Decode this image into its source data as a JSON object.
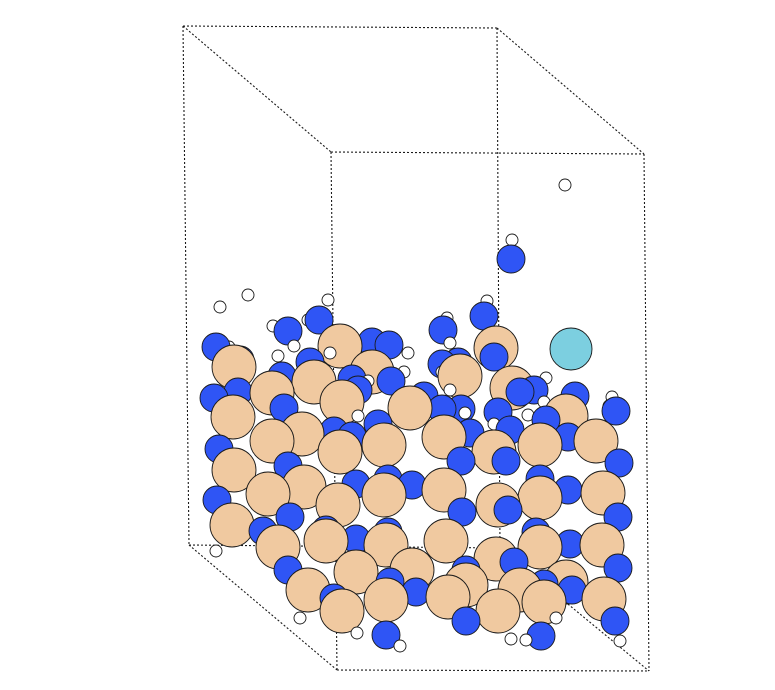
{
  "figure": {
    "description_visible_text": "",
    "colors": {
      "background": "#ffffff",
      "cell_edges": "#1a1a1a",
      "metal_atom": "#f0c9a0",
      "nitrogen_like_atom": "#2f55f5",
      "hydrogen_like_atom": "#ffffff",
      "adsorbate_atom": "#7ccfe0"
    },
    "atom_types": [
      "metal-atom",
      "blue-atom",
      "hydrogen-atom",
      "cyan-atom"
    ],
    "legend": []
  }
}
